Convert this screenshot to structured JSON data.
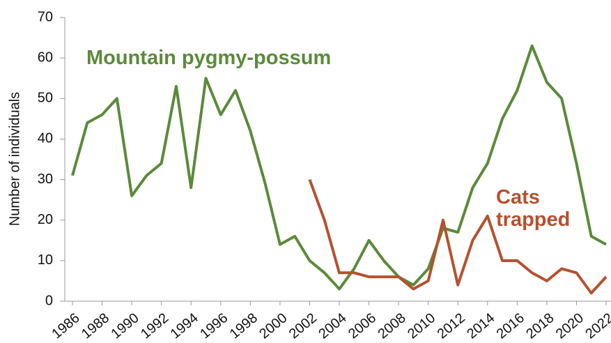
{
  "chart_data": {
    "type": "line",
    "y_label": "Number of individuals",
    "x": [
      1986,
      1987,
      1988,
      1989,
      1990,
      1991,
      1992,
      1993,
      1994,
      1995,
      1996,
      1997,
      1998,
      1999,
      2000,
      2001,
      2002,
      2003,
      2004,
      2005,
      2006,
      2007,
      2008,
      2009,
      2010,
      2011,
      2012,
      2013,
      2014,
      2015,
      2016,
      2017,
      2018,
      2019,
      2020,
      2021,
      2022
    ],
    "series": [
      {
        "name": "Mountain pygmy-possum",
        "color": "#5b8a3a",
        "values": [
          31,
          44,
          46,
          50,
          26,
          31,
          34,
          53,
          28,
          55,
          46,
          52,
          42,
          29,
          14,
          16,
          10,
          7,
          3,
          8,
          15,
          10,
          6,
          4,
          8,
          18,
          17,
          28,
          34,
          45,
          52,
          63,
          54,
          50,
          34,
          16,
          14
        ]
      },
      {
        "name": "Cats trapped",
        "color": "#b5512f",
        "values": [
          null,
          null,
          null,
          null,
          null,
          null,
          null,
          null,
          null,
          null,
          null,
          null,
          null,
          null,
          null,
          null,
          30,
          20,
          7,
          7,
          6,
          6,
          6,
          3,
          5,
          20,
          4,
          15,
          21,
          10,
          10,
          7,
          5,
          8,
          7,
          2,
          6
        ]
      }
    ],
    "xlim": [
      1986,
      2022
    ],
    "xticks": [
      1986,
      1988,
      1990,
      1992,
      1994,
      1996,
      1998,
      2000,
      2002,
      2004,
      2006,
      2008,
      2010,
      2012,
      2014,
      2016,
      2018,
      2020,
      2022
    ],
    "ylim": [
      0,
      70
    ],
    "yticks": [
      0,
      10,
      20,
      30,
      40,
      50,
      60,
      70
    ],
    "grid": false
  }
}
